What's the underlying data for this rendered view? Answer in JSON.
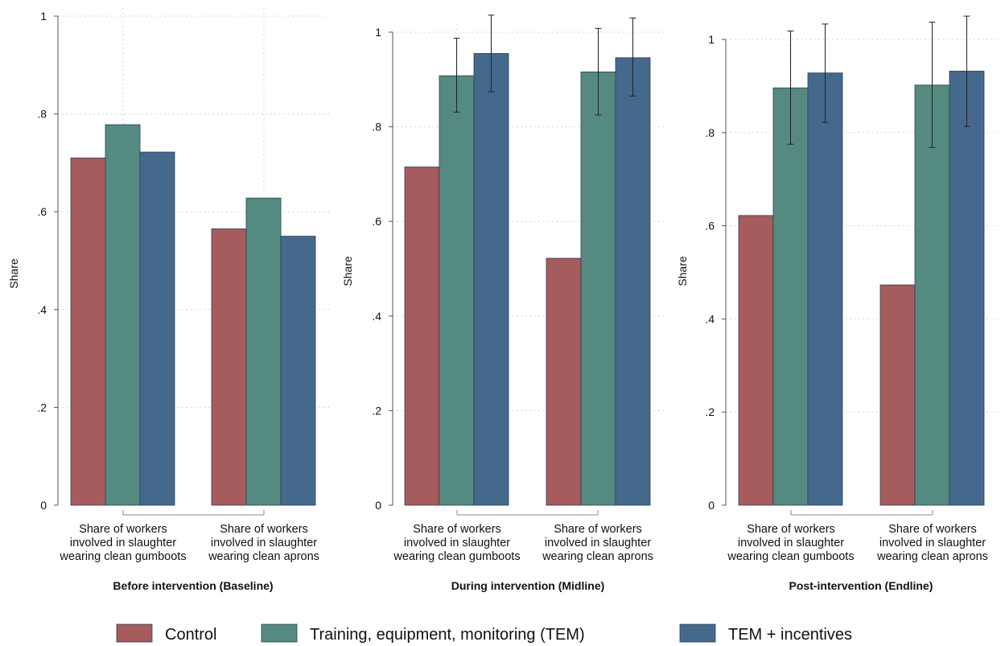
{
  "chart_data": [
    {
      "type": "bar",
      "title": "Before intervention (Baseline)",
      "ylabel": "Share",
      "ylim": [
        0,
        1
      ],
      "yticks": [
        0,
        0.2,
        0.4,
        0.6,
        0.8,
        1
      ],
      "ytick_labels": [
        "0",
        ".2",
        ".4",
        ".6",
        ".8",
        "1"
      ],
      "categories": [
        [
          "Share of workers",
          "involved in slaughter",
          "wearing clean gumboots"
        ],
        [
          "Share of workers",
          "involved in slaughter",
          "wearing clean aprons"
        ]
      ],
      "series": [
        {
          "name": "Control",
          "values": [
            0.71,
            0.565
          ]
        },
        {
          "name": "Training, equipment, monitoring (TEM)",
          "values": [
            0.778,
            0.628
          ]
        },
        {
          "name": "TEM + incentives",
          "values": [
            0.722,
            0.55
          ]
        }
      ],
      "grid": true
    },
    {
      "type": "bar",
      "title": "During intervention (Midline)",
      "ylabel": "Share",
      "ylim": [
        0,
        1.02
      ],
      "yticks": [
        0,
        0.2,
        0.4,
        0.6,
        0.8,
        1
      ],
      "ytick_labels": [
        "0",
        ".2",
        ".4",
        ".6",
        ".8",
        "1"
      ],
      "categories": [
        [
          "Share of workers",
          "involved in slaughter",
          "wearing clean gumboots"
        ],
        [
          "Share of workers",
          "involved in slaughter",
          "wearing clean aprons"
        ]
      ],
      "series": [
        {
          "name": "Control",
          "values": [
            0.715,
            0.522
          ]
        },
        {
          "name": "Training, equipment, monitoring (TEM)",
          "values": [
            0.908,
            0.916
          ],
          "err_low": [
            0.831,
            0.825
          ],
          "err_high": [
            0.987,
            1.008
          ]
        },
        {
          "name": "TEM + incentives",
          "values": [
            0.955,
            0.946
          ],
          "err_low": [
            0.874,
            0.865
          ],
          "err_high": [
            1.036,
            1.03
          ]
        }
      ],
      "grid": true
    },
    {
      "type": "bar",
      "title": "Post-intervention (Endline)",
      "ylabel": "Share",
      "ylim": [
        0,
        1.02
      ],
      "yticks": [
        0,
        0.2,
        0.4,
        0.6,
        0.8,
        1
      ],
      "ytick_labels": [
        "0",
        ".2",
        ".4",
        ".6",
        ".8",
        "1"
      ],
      "categories": [
        [
          "Share of workers",
          "involved in slaughter",
          "wearing clean gumboots"
        ],
        [
          "Share of workers",
          "involved in slaughter",
          "wearing clean aprons"
        ]
      ],
      "series": [
        {
          "name": "Control",
          "values": [
            0.622,
            0.473
          ]
        },
        {
          "name": "Training, equipment, monitoring (TEM)",
          "values": [
            0.896,
            0.902
          ],
          "err_low": [
            0.775,
            0.768
          ],
          "err_high": [
            1.018,
            1.037
          ]
        },
        {
          "name": "TEM + incentives",
          "values": [
            0.928,
            0.932
          ],
          "err_low": [
            0.822,
            0.813
          ],
          "err_high": [
            1.033,
            1.05
          ]
        }
      ],
      "grid": true
    }
  ],
  "legend": {
    "placement": "bottom",
    "items": [
      {
        "label": "Control",
        "color": "#a65b5c"
      },
      {
        "label": "Training, equipment, monitoring (TEM)",
        "color": "#548a80"
      },
      {
        "label": "TEM + incentives",
        "color": "#44698c"
      }
    ]
  },
  "colors": {
    "control": "#a65b5c",
    "tem": "#548a80",
    "tem_incentives": "#44698c",
    "bar_edge": "#2e3e54"
  }
}
